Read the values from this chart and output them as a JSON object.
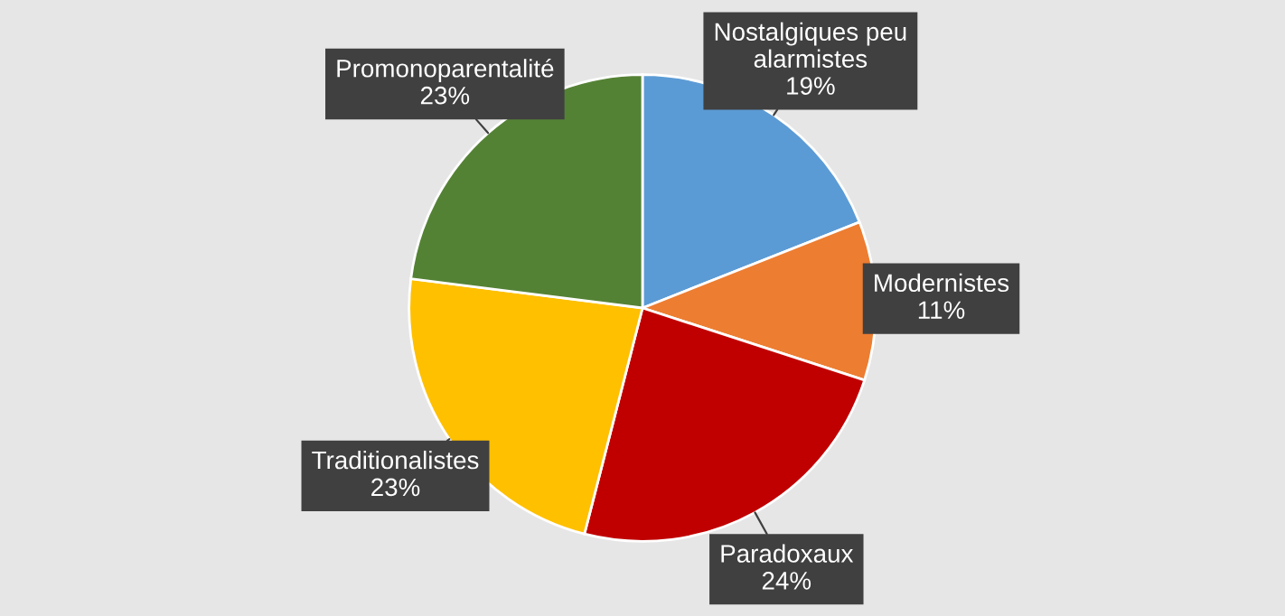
{
  "chart_data": {
    "type": "pie",
    "categories": [
      "Nostalgiques peu alarmistes",
      "Modernistes",
      "Paradoxaux",
      "Traditionalistes",
      "Promonoparentalité"
    ],
    "values": [
      19,
      11,
      24,
      23,
      23
    ],
    "value_labels": [
      "19%",
      "11%",
      "24%",
      "23%",
      "23%"
    ],
    "colors": [
      "#5b9bd5",
      "#ed7d31",
      "#c00000",
      "#ffc000",
      "#548235"
    ],
    "legend": false
  }
}
